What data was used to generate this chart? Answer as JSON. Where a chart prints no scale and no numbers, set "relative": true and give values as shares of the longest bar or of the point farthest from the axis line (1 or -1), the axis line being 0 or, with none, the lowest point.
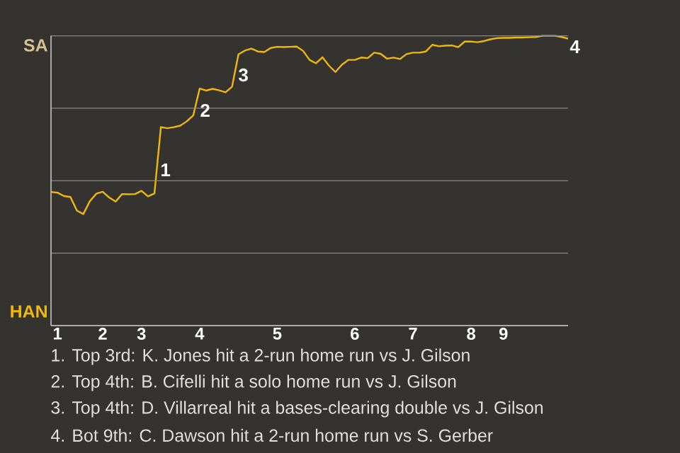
{
  "chart_data": {
    "type": "line",
    "relative": true,
    "categories": [
      null,
      "1",
      null,
      null,
      null,
      null,
      null,
      null,
      "2",
      null,
      null,
      null,
      null,
      null,
      "3",
      null,
      null,
      null,
      null,
      null,
      null,
      null,
      null,
      "4",
      null,
      null,
      null,
      null,
      null,
      null,
      null,
      null,
      null,
      null,
      null,
      "5",
      null,
      null,
      null,
      null,
      null,
      null,
      null,
      null,
      null,
      null,
      null,
      "6",
      null,
      null,
      null,
      null,
      null,
      null,
      null,
      null,
      "7",
      null,
      null,
      null,
      null,
      null,
      null,
      null,
      null,
      "8",
      null,
      null,
      null,
      null,
      "9",
      null,
      null,
      null,
      null,
      null,
      null,
      null,
      null,
      null,
      null
    ],
    "series": [
      {
        "color": "#f2b807",
        "values": [
          0.461,
          0.459,
          0.447,
          0.444,
          0.397,
          0.385,
          0.429,
          0.455,
          0.462,
          0.442,
          0.428,
          0.454,
          0.453,
          0.454,
          0.465,
          0.446,
          0.456,
          0.685,
          0.681,
          0.685,
          0.69,
          0.705,
          0.725,
          0.818,
          0.811,
          0.817,
          0.812,
          0.805,
          0.824,
          0.936,
          0.949,
          0.956,
          0.946,
          0.944,
          0.958,
          0.962,
          0.961,
          0.962,
          0.963,
          0.948,
          0.917,
          0.905,
          0.926,
          0.897,
          0.875,
          0.9,
          0.917,
          0.917,
          0.925,
          0.923,
          0.942,
          0.938,
          0.921,
          0.925,
          0.92,
          0.937,
          0.942,
          0.942,
          0.946,
          0.969,
          0.964,
          0.966,
          0.967,
          0.961,
          0.98,
          0.98,
          0.978,
          0.982,
          0.988,
          0.992,
          0.993,
          0.993,
          0.994,
          0.994,
          0.995,
          0.996,
          1.0,
          1.0,
          1.0,
          0.996,
          0.99
        ]
      }
    ],
    "grid": "y",
    "annotations": [
      "SA",
      "HAN",
      "1",
      "2",
      "3",
      "4",
      "1. Top 3rd: K. Jones hit a 2-run home run vs J. Gilson",
      "2. Top 4th: B. Cifelli hit a solo home run vs J. Gilson",
      "3. Top 4th: D. Villarreal hit a bases-clearing double vs J. Gilson",
      "4. Bot 9th: C. Dawson hit a 2-run home run vs S. Gerber"
    ]
  }
}
